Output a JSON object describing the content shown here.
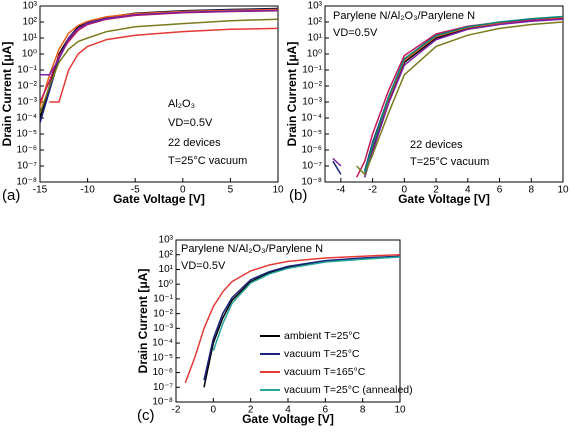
{
  "chart_data": [
    {
      "type": "line",
      "panel_label": "(a)",
      "xlabel": "Gate Voltage [V]",
      "ylabel": "Drain Current [μA]",
      "annotations": [
        "Al₂O₃",
        "VD=0.5V",
        "22 devices",
        "T=25°C vacuum"
      ],
      "ylog": true,
      "xlim": [
        -15,
        10
      ],
      "ylim": [
        1e-08,
        1000
      ],
      "xticks": [
        -15,
        -10,
        -5,
        0,
        5,
        10
      ],
      "yticks": [
        {
          "value": 1e-08,
          "label": "10⁻⁸"
        },
        {
          "value": 1e-07,
          "label": "10⁻⁷"
        },
        {
          "value": 1e-06,
          "label": "10⁻⁶"
        },
        {
          "value": 1e-05,
          "label": "10⁻⁵"
        },
        {
          "value": 0.0001,
          "label": "10⁻⁴"
        },
        {
          "value": 0.001,
          "label": "10⁻³"
        },
        {
          "value": 0.01,
          "label": "10⁻²"
        },
        {
          "value": 0.1,
          "label": "10⁻¹"
        },
        {
          "value": 1,
          "label": "10⁰"
        },
        {
          "value": 10,
          "label": "10¹"
        },
        {
          "value": 100,
          "label": "10²"
        },
        {
          "value": 1000,
          "label": "10³"
        }
      ],
      "x": [
        -15,
        -14,
        -13,
        -12,
        -11,
        -10,
        -8,
        -5,
        0,
        5,
        10
      ],
      "series": [
        {
          "color": "#000000",
          "values": [
            0.0001,
            0.01,
            1,
            10,
            50,
            100,
            200,
            350,
            500,
            600,
            700
          ]
        },
        {
          "color": "#1a237e",
          "values": [
            5e-05,
            0.005,
            0.5,
            8,
            40,
            90,
            180,
            320,
            480,
            580,
            650
          ]
        },
        {
          "color": "#e8601c",
          "values": [
            0.0005,
            0.05,
            2,
            20,
            60,
            110,
            210,
            330,
            450,
            520,
            600
          ]
        },
        {
          "color": "#c2185b",
          "values": [
            0.001,
            0.02,
            0.8,
            6,
            30,
            70,
            150,
            260,
            380,
            450,
            500
          ]
        },
        {
          "color": "#7b1fa2",
          "values": [
            0.05,
            0.05,
            0.5,
            10,
            40,
            80,
            160,
            280,
            400,
            470,
            520
          ]
        },
        {
          "color": "#7a7a1e",
          "values": [
            0.0002,
            0.01,
            0.3,
            2,
            6,
            10,
            25,
            50,
            80,
            120,
            150
          ]
        },
        {
          "color": "#e53935",
          "values": [
            null,
            0.001,
            0.001,
            0.1,
            1,
            3,
            8,
            15,
            25,
            35,
            40
          ]
        }
      ]
    },
    {
      "type": "line",
      "panel_label": "(b)",
      "xlabel": "Gate Voltage [V]",
      "ylabel": "Drain Current [μA]",
      "annotations": [
        "Parylene N/Al₂O₃/Parylene N",
        "VD=0.5V",
        "22 devices",
        "T=25°C vacuum"
      ],
      "ylog": true,
      "xlim": [
        -5,
        10
      ],
      "ylim": [
        1e-08,
        1000
      ],
      "xticks": [
        -4,
        -2,
        0,
        2,
        4,
        6,
        8,
        10
      ],
      "yticks": [
        {
          "value": 1e-08,
          "label": "10⁻⁸"
        },
        {
          "value": 1e-07,
          "label": "10⁻⁷"
        },
        {
          "value": 1e-06,
          "label": "10⁻⁶"
        },
        {
          "value": 1e-05,
          "label": "10⁻⁵"
        },
        {
          "value": 0.0001,
          "label": "10⁻⁴"
        },
        {
          "value": 0.001,
          "label": "10⁻³"
        },
        {
          "value": 0.01,
          "label": "10⁻²"
        },
        {
          "value": 0.1,
          "label": "10⁻¹"
        },
        {
          "value": 1,
          "label": "10⁰"
        },
        {
          "value": 10,
          "label": "10¹"
        },
        {
          "value": 100,
          "label": "10²"
        },
        {
          "value": 1000,
          "label": "10³"
        }
      ],
      "x": [
        -4.5,
        -4,
        -3.5,
        -3,
        -2.5,
        -2,
        -1,
        0,
        2,
        4,
        6,
        8,
        10
      ],
      "series": [
        {
          "color": "#000000",
          "values": [
            null,
            null,
            null,
            null,
            2e-08,
            1e-06,
            0.001,
            0.3,
            10,
            40,
            80,
            120,
            170
          ]
        },
        {
          "color": "#1a237e",
          "values": [
            2e-07,
            3e-08,
            null,
            null,
            5e-08,
            3e-06,
            0.002,
            0.5,
            15,
            50,
            90,
            140,
            200
          ]
        },
        {
          "color": "#e8601c",
          "values": [
            null,
            null,
            null,
            null,
            3e-08,
            2e-06,
            0.0015,
            0.4,
            12,
            45,
            85,
            130,
            180
          ]
        },
        {
          "color": "#c2185b",
          "values": [
            null,
            null,
            null,
            2e-08,
            2e-07,
            1e-05,
            0.005,
            0.8,
            18,
            55,
            95,
            130,
            160
          ]
        },
        {
          "color": "#7b1fa2",
          "values": [
            3e-07,
            1e-07,
            null,
            null,
            2e-08,
            8e-07,
            0.0008,
            0.2,
            8,
            35,
            70,
            110,
            150
          ]
        },
        {
          "color": "#7a7a1e",
          "values": [
            null,
            null,
            null,
            1e-07,
            3e-08,
            5e-07,
            0.0002,
            0.05,
            3,
            15,
            40,
            70,
            100
          ]
        },
        {
          "color": "#00897b",
          "values": [
            null,
            null,
            null,
            null,
            4e-08,
            2e-06,
            0.002,
            0.5,
            14,
            50,
            100,
            160,
            220
          ]
        }
      ]
    },
    {
      "type": "line",
      "panel_label": "(c)",
      "xlabel": "Gate Voltage [V]",
      "ylabel": "Drain Current [μA]",
      "annotations": [
        "Parylene N/Al₂O₃/Parylene N",
        "VD=0.5V"
      ],
      "ylog": true,
      "legend": "lower right",
      "xlim": [
        -2,
        10
      ],
      "ylim": [
        1e-08,
        1000
      ],
      "xticks": [
        -2,
        0,
        2,
        4,
        6,
        8,
        10
      ],
      "yticks": [
        {
          "value": 1e-08,
          "label": "10⁻⁸"
        },
        {
          "value": 1e-07,
          "label": "10⁻⁷"
        },
        {
          "value": 1e-06,
          "label": "10⁻⁶"
        },
        {
          "value": 1e-05,
          "label": "10⁻⁵"
        },
        {
          "value": 0.0001,
          "label": "10⁻⁴"
        },
        {
          "value": 0.001,
          "label": "10⁻³"
        },
        {
          "value": 0.01,
          "label": "10⁻²"
        },
        {
          "value": 0.1,
          "label": "10⁻¹"
        },
        {
          "value": 1,
          "label": "10⁰"
        },
        {
          "value": 10,
          "label": "10¹"
        },
        {
          "value": 100,
          "label": "10²"
        },
        {
          "value": 1000,
          "label": "10³"
        }
      ],
      "x": [
        -2,
        -1.5,
        -1,
        -0.5,
        0,
        0.5,
        1,
        2,
        3,
        4,
        6,
        8,
        10
      ],
      "series": [
        {
          "name": "ambient T=25°C",
          "color": "#000000",
          "values": [
            null,
            null,
            null,
            1e-07,
            0.0001,
            0.005,
            0.08,
            1.5,
            6,
            14,
            35,
            55,
            75
          ]
        },
        {
          "name": "vacuum T=25°C",
          "color": "#1a237e",
          "values": [
            null,
            null,
            null,
            3e-07,
            0.0002,
            0.01,
            0.12,
            2,
            7,
            16,
            40,
            60,
            80
          ]
        },
        {
          "name": "vacuum T=165°C",
          "color": "#e53935",
          "values": [
            null,
            2e-07,
            1e-05,
            0.001,
            0.03,
            0.3,
            1.5,
            8,
            20,
            35,
            60,
            80,
            100
          ]
        },
        {
          "name": "vacuum T=25°C (annealed)",
          "color": "#26a69a",
          "values": [
            null,
            null,
            null,
            null,
            3e-05,
            0.002,
            0.05,
            1.2,
            5,
            12,
            32,
            50,
            70
          ]
        }
      ]
    }
  ]
}
